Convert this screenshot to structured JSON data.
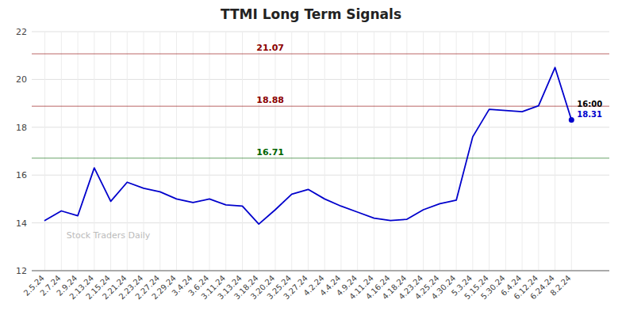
{
  "chart_data": {
    "type": "line",
    "title": "TTMI Long Term Signals",
    "categories": [
      "2.5.24",
      "2.7.24",
      "2.9.24",
      "2.13.24",
      "2.15.24",
      "2.21.24",
      "2.23.24",
      "2.27.24",
      "2.29.24",
      "3.4.24",
      "3.6.24",
      "3.11.24",
      "3.13.24",
      "3.18.24",
      "3.20.24",
      "3.25.24",
      "3.27.24",
      "4.2.24",
      "4.4.24",
      "4.9.24",
      "4.11.24",
      "4.16.24",
      "4.18.24",
      "4.23.24",
      "4.25.24",
      "4.30.24",
      "5.3.24",
      "5.15.24",
      "5.30.24",
      "6.4.24",
      "6.12.24",
      "6.24.24",
      "8.2.24"
    ],
    "values": [
      14.1,
      14.5,
      14.3,
      16.3,
      14.9,
      15.7,
      15.45,
      15.3,
      15.0,
      14.85,
      15.0,
      14.75,
      14.7,
      13.95,
      14.55,
      15.2,
      15.4,
      15.0,
      14.7,
      14.45,
      14.2,
      14.1,
      14.15,
      14.55,
      14.8,
      14.95,
      17.6,
      18.75,
      18.7,
      18.65,
      18.9,
      20.5,
      18.31
    ],
    "color": "#0000cc",
    "reference_lines": [
      {
        "value": 21.07,
        "label": "21.07",
        "color": "#8b0000"
      },
      {
        "value": 18.88,
        "label": "18.88",
        "color": "#8b0000"
      },
      {
        "value": 16.71,
        "label": "16.71",
        "color": "#006400"
      }
    ],
    "annotations": [
      "16:00",
      "18.31",
      "Stock Traders Daily"
    ],
    "ylim": [
      12,
      22
    ],
    "yticks": [
      12,
      14,
      16,
      18,
      20,
      22
    ],
    "grid": true
  }
}
